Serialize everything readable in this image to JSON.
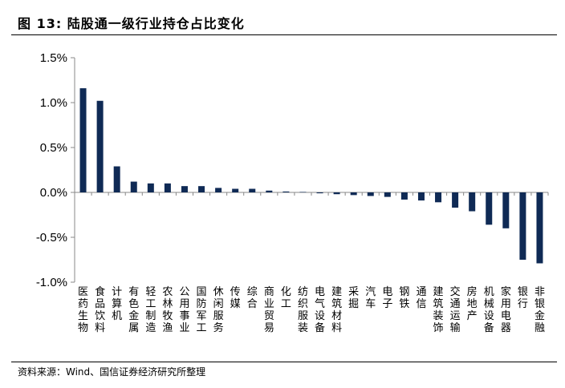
{
  "title": "图 13:  陆股通一级行业持仓占比变化",
  "source": "资料来源：Wind、国信证券经济研究所整理",
  "colors": {
    "bar": "#0f2a55",
    "axis": "#888888"
  },
  "chart_data": {
    "type": "bar",
    "title": "",
    "xlabel": "",
    "ylabel": "",
    "ylim": [
      -1.0,
      1.5
    ],
    "yticks": [
      "1.5%",
      "1.0%",
      "0.5%",
      "0.0%",
      "-0.5%",
      "-1.0%"
    ],
    "grid": false,
    "legend": "none",
    "categories": [
      "医药生物",
      "食品饮料",
      "计算机",
      "有色金属",
      "轻工制造",
      "农林牧渔",
      "公用事业",
      "国防军工",
      "休闲服务",
      "传媒",
      "综合",
      "商业贸易",
      "化工",
      "纺织服装",
      "电气设备",
      "建筑材料",
      "采掘",
      "汽车",
      "电子",
      "钢铁",
      "通信",
      "建筑装饰",
      "交通运输",
      "房地产",
      "机械设备",
      "家用电器",
      "银行",
      "非银金融"
    ],
    "values": [
      1.16,
      1.02,
      0.29,
      0.12,
      0.1,
      0.1,
      0.07,
      0.07,
      0.05,
      0.04,
      0.04,
      0.02,
      0.01,
      0.005,
      -0.01,
      -0.02,
      -0.03,
      -0.04,
      -0.05,
      -0.08,
      -0.09,
      -0.11,
      -0.17,
      -0.21,
      -0.36,
      -0.4,
      -0.75,
      -0.79
    ]
  }
}
